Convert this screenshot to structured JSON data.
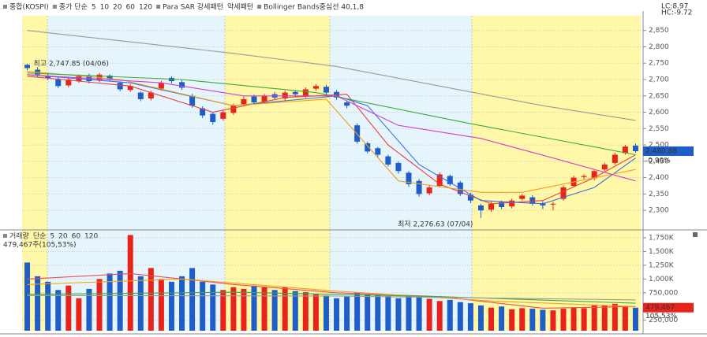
{
  "header": {
    "title": "종합(KOSPI)",
    "ma_prefix": "종가 단순",
    "sar_up": "Para SAR 강세패턴",
    "sar_down": "약세패턴",
    "lc_label": "LC:8.97",
    "hc_label": "HC:-9.72"
  },
  "chart_data": [
    {
      "type": "candlestick",
      "open": [
        2745,
        2730,
        2712,
        2700,
        2682,
        2695,
        2712,
        2698,
        2712,
        2690,
        2668,
        2660,
        2642,
        2672,
        2705,
        2692,
        2650,
        2612,
        2595,
        2580,
        2598,
        2625,
        2648,
        2632,
        2655,
        2642,
        2662,
        2650,
        2672,
        2678,
        2662,
        2630,
        2560,
        2505,
        2490,
        2465,
        2445,
        2415,
        2390,
        2352,
        2375,
        2405,
        2385,
        2348,
        2315,
        2302,
        2325,
        2312,
        2335,
        2340,
        2322,
        2318,
        2335,
        2375,
        2402,
        2398,
        2425,
        2445,
        2475,
        2498
      ],
      "high": [
        2747.85,
        2738,
        2718,
        2706,
        2706,
        2716,
        2718,
        2720,
        2716,
        2694,
        2686,
        2664,
        2666,
        2696,
        2710,
        2698,
        2656,
        2618,
        2600,
        2606,
        2626,
        2648,
        2654,
        2656,
        2662,
        2666,
        2668,
        2676,
        2686,
        2684,
        2668,
        2636,
        2566,
        2510,
        2494,
        2470,
        2450,
        2420,
        2396,
        2378,
        2416,
        2410,
        2390,
        2354,
        2320,
        2326,
        2330,
        2336,
        2350,
        2346,
        2328,
        2326,
        2376,
        2406,
        2410,
        2424,
        2446,
        2476,
        2500,
        2504
      ],
      "low": [
        2728,
        2708,
        2698,
        2674,
        2676,
        2690,
        2688,
        2692,
        2694,
        2664,
        2662,
        2634,
        2636,
        2666,
        2688,
        2668,
        2614,
        2582,
        2562,
        2574,
        2592,
        2620,
        2624,
        2626,
        2638,
        2636,
        2648,
        2644,
        2666,
        2654,
        2638,
        2612,
        2504,
        2474,
        2462,
        2434,
        2412,
        2372,
        2342,
        2346,
        2370,
        2374,
        2344,
        2322,
        2276.63,
        2296,
        2304,
        2306,
        2330,
        2314,
        2304,
        2300,
        2330,
        2370,
        2396,
        2392,
        2420,
        2440,
        2470,
        2476
      ],
      "close": [
        2735,
        2715,
        2705,
        2680,
        2700,
        2710,
        2695,
        2715,
        2700,
        2670,
        2680,
        2640,
        2660,
        2690,
        2695,
        2675,
        2620,
        2590,
        2570,
        2600,
        2620,
        2640,
        2630,
        2650,
        2645,
        2660,
        2655,
        2670,
        2680,
        2660,
        2645,
        2620,
        2510,
        2480,
        2470,
        2440,
        2420,
        2380,
        2350,
        2370,
        2410,
        2380,
        2350,
        2330,
        2300,
        2320,
        2310,
        2330,
        2345,
        2320,
        2315,
        2320,
        2370,
        2400,
        2405,
        2420,
        2440,
        2470,
        2495,
        2480.88
      ],
      "up_color": "#e8231c",
      "down_color": "#1f5dc9",
      "lines": [
        {
          "name": "5",
          "color": "#e84040",
          "x": [
            0,
            10,
            18,
            25,
            31,
            35,
            40,
            45,
            50,
            55,
            59
          ],
          "values": [
            2710,
            2680,
            2600,
            2645,
            2655,
            2500,
            2380,
            2320,
            2330,
            2400,
            2470
          ]
        },
        {
          "name": "10",
          "color": "#3a6fe0",
          "x": [
            0,
            10,
            20,
            30,
            33,
            38,
            44,
            50,
            55,
            59
          ],
          "values": [
            2715,
            2690,
            2620,
            2650,
            2620,
            2440,
            2330,
            2320,
            2370,
            2460
          ]
        },
        {
          "name": "20",
          "color": "#f0a020",
          "x": [
            0,
            9,
            20,
            29,
            36,
            44,
            48,
            59
          ],
          "values": [
            2725,
            2700,
            2620,
            2640,
            2390,
            2355,
            2355,
            2425
          ]
        },
        {
          "name": "60",
          "color": "#3caa3c",
          "x": [
            0,
            15,
            28,
            43,
            59
          ],
          "values": [
            2720,
            2700,
            2660,
            2565,
            2470
          ]
        },
        {
          "name": "120",
          "color": "#9a9a9a",
          "x": [
            0,
            10,
            20,
            30,
            40,
            50,
            59
          ],
          "values": [
            2850,
            2815,
            2780,
            2740,
            2680,
            2620,
            2575
          ]
        },
        {
          "name": "Bollinger Bands중심선 40,1,8",
          "color": "#d040d0",
          "x": [
            0,
            13,
            21,
            30,
            36,
            44,
            51,
            59
          ],
          "values": [
            2715,
            2690,
            2650,
            2650,
            2560,
            2520,
            2460,
            2390
          ]
        }
      ],
      "annotations": [
        {
          "text": "최고 2,747.85 (04/06)",
          "x": 0,
          "y": 2747.85,
          "color": "#d02020"
        },
        {
          "text": "최저 2,276.63 (07/04)",
          "x": 44,
          "y": 2276.63,
          "color": "#2040b0"
        }
      ],
      "last_price_label": "2,480.88",
      "change_label": "-0.90%",
      "ylim": [
        2245,
        2895
      ],
      "yticks": [
        {
          "value": 2300,
          "label": "2,300"
        },
        {
          "value": 2350,
          "label": "2,350"
        },
        {
          "value": 2400,
          "label": "2,400"
        },
        {
          "value": 2450,
          "label": "2,450"
        },
        {
          "value": 2500,
          "label": "2,500"
        },
        {
          "value": 2550,
          "label": "2,550"
        },
        {
          "value": 2600,
          "label": "2,600"
        },
        {
          "value": 2650,
          "label": "2,650"
        },
        {
          "value": 2700,
          "label": "2,700"
        },
        {
          "value": 2750,
          "label": "2,750"
        },
        {
          "value": 2800,
          "label": "2,800"
        },
        {
          "value": 2850,
          "label": "2,850"
        }
      ],
      "grid": true
    },
    {
      "type": "volume",
      "title": "거래량",
      "ma_prefix": "단순",
      "values": [
        1300000,
        1050000,
        950000,
        800000,
        880000,
        650000,
        820000,
        1000000,
        1100000,
        1150000,
        1800000,
        1050000,
        1200000,
        1000000,
        950000,
        1050000,
        1200000,
        950000,
        900000,
        800000,
        850000,
        820000,
        880000,
        850000,
        800000,
        850000,
        780000,
        760000,
        720000,
        700000,
        650000,
        680000,
        760000,
        720000,
        700000,
        690000,
        650000,
        700000,
        680000,
        640000,
        600000,
        620000,
        580000,
        560000,
        520000,
        480000,
        500000,
        450000,
        470000,
        460000,
        440000,
        430000,
        460000,
        480000,
        470000,
        520000,
        520000,
        550000,
        500000,
        479467
      ],
      "lines": [
        {
          "name": "5",
          "color": "#e85050",
          "x": [
            0,
            10,
            20,
            30,
            40,
            50,
            59
          ],
          "values": [
            1000000,
            1100000,
            900000,
            750000,
            680000,
            470000,
            500000
          ]
        },
        {
          "name": "20",
          "color": "#f0a020",
          "x": [
            0,
            15,
            30,
            45,
            59
          ],
          "values": [
            900000,
            1000000,
            780000,
            600000,
            500000
          ]
        },
        {
          "name": "60",
          "color": "#3caa3c",
          "x": [
            0,
            20,
            40,
            59
          ],
          "values": [
            720000,
            760000,
            680000,
            560000
          ]
        },
        {
          "name": "120",
          "color": "#9a9a9a",
          "x": [
            0,
            30,
            59
          ],
          "values": [
            700000,
            690000,
            620000
          ]
        }
      ],
      "summary_label": "479,467주(105,53%)",
      "last_value_label": "479,467",
      "ratio_label": "105,53%",
      "ylim": [
        60000,
        1850000
      ],
      "yticks": [
        {
          "value": 250000,
          "label": "250,000"
        },
        {
          "value": 750000,
          "label": "750,000"
        },
        {
          "value": 1000000,
          "label": "1,000K"
        },
        {
          "value": 1250000,
          "label": "1,250K"
        },
        {
          "value": 1500000,
          "label": "1,500K"
        },
        {
          "value": 1750000,
          "label": "1,750K"
        }
      ],
      "grid": true
    }
  ]
}
